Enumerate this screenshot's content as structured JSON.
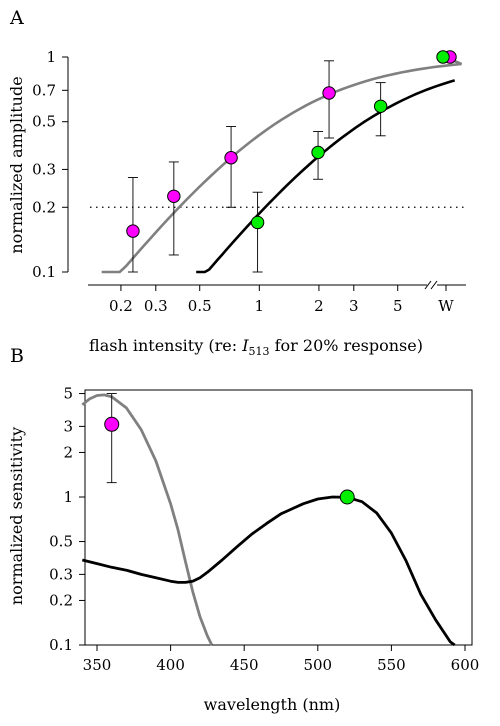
{
  "chart_data": [
    {
      "panel": "A",
      "type": "scatter",
      "xlabel_main": "flash intensity (re: ",
      "xlabel_I": "I",
      "xlabel_sub": "513",
      "xlabel_tail": " for 20% response)",
      "ylabel": "normalized amplitude",
      "x_scale": "log",
      "y_scale": "log",
      "xlim": [
        0.12,
        12
      ],
      "ylim": [
        0.1,
        1
      ],
      "x_ticks": [
        0.2,
        0.3,
        0.5,
        1,
        2,
        3,
        5
      ],
      "x_tick_labels": [
        "0.2",
        "0.3",
        "0.5",
        "1",
        "2",
        "3",
        "5"
      ],
      "x_break_label": "W",
      "y_ticks": [
        0.1,
        0.2,
        0.3,
        0.5,
        0.7,
        1
      ],
      "y_tick_labels": [
        "0.1",
        "0.2",
        "0.3",
        "0.5",
        "0.7",
        "1"
      ],
      "reference_line_y": 0.2,
      "series": [
        {
          "color": "#ff00ff",
          "curve_color": "#808080",
          "points": [
            {
              "x": 0.23,
              "y": 0.155,
              "lo": 0.1,
              "hi": 0.275
            },
            {
              "x": 0.37,
              "y": 0.225,
              "lo": 0.12,
              "hi": 0.325
            },
            {
              "x": 0.72,
              "y": 0.34,
              "lo": 0.2,
              "hi": 0.475
            },
            {
              "x": 2.25,
              "y": 0.68,
              "lo": 0.42,
              "hi": 0.96
            },
            {
              "x": "W",
              "y": 1.0
            }
          ]
        },
        {
          "color": "#00ee00",
          "curve_color": "#000000",
          "points": [
            {
              "x": 0.98,
              "y": 0.17,
              "lo": 0.1,
              "hi": 0.235
            },
            {
              "x": 1.98,
              "y": 0.36,
              "lo": 0.27,
              "hi": 0.45
            },
            {
              "x": 4.1,
              "y": 0.59,
              "lo": 0.43,
              "hi": 0.76
            },
            {
              "x": "W",
              "y": 1.0
            }
          ]
        }
      ]
    },
    {
      "panel": "B",
      "type": "line",
      "xlabel": "wavelength (nm)",
      "ylabel": "normalized sensitivity",
      "x_scale": "linear",
      "y_scale": "log",
      "xlim": [
        340,
        600
      ],
      "ylim": [
        0.1,
        6
      ],
      "x_ticks": [
        350,
        400,
        450,
        500,
        550,
        600
      ],
      "x_tick_labels": [
        "350",
        "400",
        "450",
        "500",
        "550",
        "600"
      ],
      "y_ticks": [
        0.1,
        0.2,
        0.3,
        0.5,
        1,
        2,
        3,
        5
      ],
      "y_tick_labels": [
        "0.1",
        "0.2",
        "0.3",
        "0.5",
        "1",
        "2",
        "3",
        "5"
      ],
      "series": [
        {
          "color": "#808080",
          "values": [
            [
              340,
              4.2
            ],
            [
              345,
              4.6
            ],
            [
              350,
              4.85
            ],
            [
              355,
              4.9
            ],
            [
              360,
              4.75
            ],
            [
              370,
              4.0
            ],
            [
              380,
              2.85
            ],
            [
              390,
              1.75
            ],
            [
              400,
              0.9
            ],
            [
              405,
              0.6
            ],
            [
              410,
              0.37
            ],
            [
              415,
              0.23
            ],
            [
              420,
              0.155
            ],
            [
              425,
              0.115
            ],
            [
              428,
              0.1
            ]
          ]
        },
        {
          "color": "#000000",
          "values": [
            [
              340,
              0.375
            ],
            [
              350,
              0.355
            ],
            [
              360,
              0.335
            ],
            [
              370,
              0.32
            ],
            [
              380,
              0.3
            ],
            [
              390,
              0.285
            ],
            [
              400,
              0.27
            ],
            [
              405,
              0.265
            ],
            [
              410,
              0.265
            ],
            [
              415,
              0.27
            ],
            [
              420,
              0.285
            ],
            [
              425,
              0.31
            ],
            [
              435,
              0.375
            ],
            [
              445,
              0.46
            ],
            [
              455,
              0.56
            ],
            [
              465,
              0.66
            ],
            [
              475,
              0.77
            ],
            [
              480,
              0.81
            ],
            [
              490,
              0.9
            ],
            [
              500,
              0.97
            ],
            [
              510,
              1.0
            ],
            [
              520,
              0.995
            ],
            [
              530,
              0.93
            ],
            [
              540,
              0.78
            ],
            [
              550,
              0.57
            ],
            [
              560,
              0.37
            ],
            [
              570,
              0.22
            ],
            [
              580,
              0.148
            ],
            [
              590,
              0.105
            ],
            [
              593,
              0.1
            ]
          ]
        }
      ],
      "points": [
        {
          "x": 360,
          "y": 3.1,
          "lo": 1.25,
          "hi": 5.0,
          "color": "#ff00ff"
        },
        {
          "x": 520,
          "y": 1.0,
          "color": "#00ee00"
        }
      ]
    }
  ]
}
